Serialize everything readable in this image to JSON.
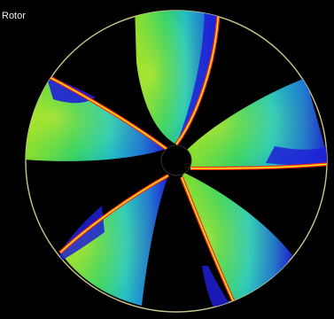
{
  "viewer": {
    "title": "Rotor",
    "colors": {
      "background": "#000000",
      "rim": "#c9c78a",
      "hub": "#000000",
      "pressure_low": "#1f1fd6",
      "pressure_mid_low": "#18c7e6",
      "pressure_mid": "#1fd07a",
      "pressure_mid_high": "#8fe02a",
      "pressure_high": "#f0ee1a",
      "edge_hot": "#ff2a1a"
    }
  }
}
